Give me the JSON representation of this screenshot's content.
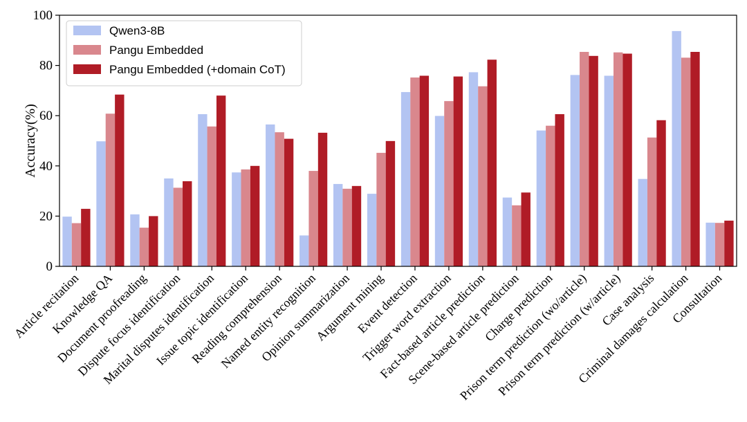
{
  "chart_data": {
    "type": "bar",
    "title": "",
    "xlabel": "",
    "ylabel": "Accuracy(%)",
    "ylim": [
      0,
      100
    ],
    "yticks": [
      0,
      20,
      40,
      60,
      80,
      100
    ],
    "grid": false,
    "legend_position": "top-left",
    "categories": [
      "Article recitation",
      "Knowledge QA",
      "Document proofreading",
      "Dispute focus identification",
      "Marital disputes identification",
      "Issue topic identification",
      "Reading comprehension",
      "Named entity recognition",
      "Opinion summarization",
      "Argument mining",
      "Event detection",
      "Trigger word extraction",
      "Fact-based article prediction",
      "Scene-based article prediction",
      "Charge prediction",
      "Prison term prediction (wo/article)",
      "Prison term prediction (w/article)",
      "Case analysis",
      "Criminal damages calculation",
      "Consultation"
    ],
    "series": [
      {
        "name": "Qwen3-8B",
        "color": "#b3c4f2",
        "values": [
          19.8,
          49.8,
          20.7,
          35.0,
          60.6,
          37.4,
          56.5,
          12.3,
          32.8,
          28.9,
          69.4,
          59.9,
          77.3,
          27.4,
          54.1,
          76.2,
          75.9,
          34.8,
          93.7,
          17.4
        ]
      },
      {
        "name": "Pangu Embedded",
        "color": "#d9878d",
        "values": [
          17.2,
          60.8,
          15.4,
          31.3,
          55.7,
          38.6,
          53.4,
          38.0,
          30.9,
          45.2,
          75.2,
          65.8,
          71.7,
          24.3,
          56.0,
          85.4,
          85.2,
          51.3,
          83.1,
          17.3
        ]
      },
      {
        "name": "Pangu Embedded (+domain CoT)",
        "color": "#b01c26",
        "values": [
          22.9,
          68.4,
          20.0,
          33.9,
          68.0,
          40.0,
          50.8,
          53.2,
          32.0,
          49.9,
          75.9,
          75.6,
          82.3,
          29.4,
          60.6,
          83.8,
          84.7,
          58.2,
          85.4,
          18.2
        ]
      }
    ]
  }
}
